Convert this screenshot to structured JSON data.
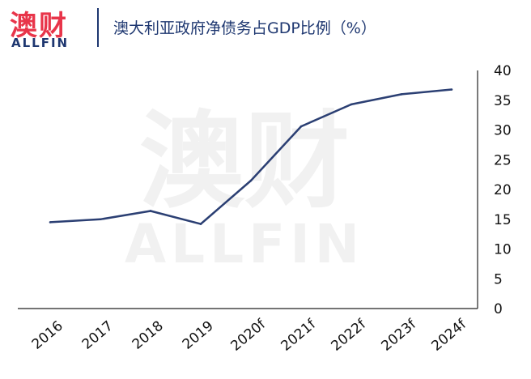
{
  "logo": {
    "cn": "澳财",
    "en": "ALLFIN"
  },
  "watermark": {
    "cn": "澳财",
    "en": "ALLFIN"
  },
  "title": "澳大利亚政府净债务占GDP比例（%）",
  "colors": {
    "line": "#2b3f73",
    "brand_red": "#e8354a",
    "brand_navy": "#1e3770"
  },
  "chart_data": {
    "type": "line",
    "title": "澳大利亚政府净债务占GDP比例（%）",
    "categories": [
      "2016",
      "2017",
      "2018",
      "2019",
      "2020f",
      "2021f",
      "2022f",
      "2023f",
      "2024f"
    ],
    "series": [
      {
        "values": [
          14.5,
          15.0,
          16.4,
          14.2,
          21.5,
          30.6,
          34.3,
          36.0,
          36.8
        ]
      }
    ],
    "ylim": [
      0,
      40
    ],
    "yticks": [
      0,
      5,
      10,
      15,
      20,
      25,
      30,
      35,
      40
    ],
    "y_axis_position": "right",
    "grid": false,
    "legend": "none"
  }
}
